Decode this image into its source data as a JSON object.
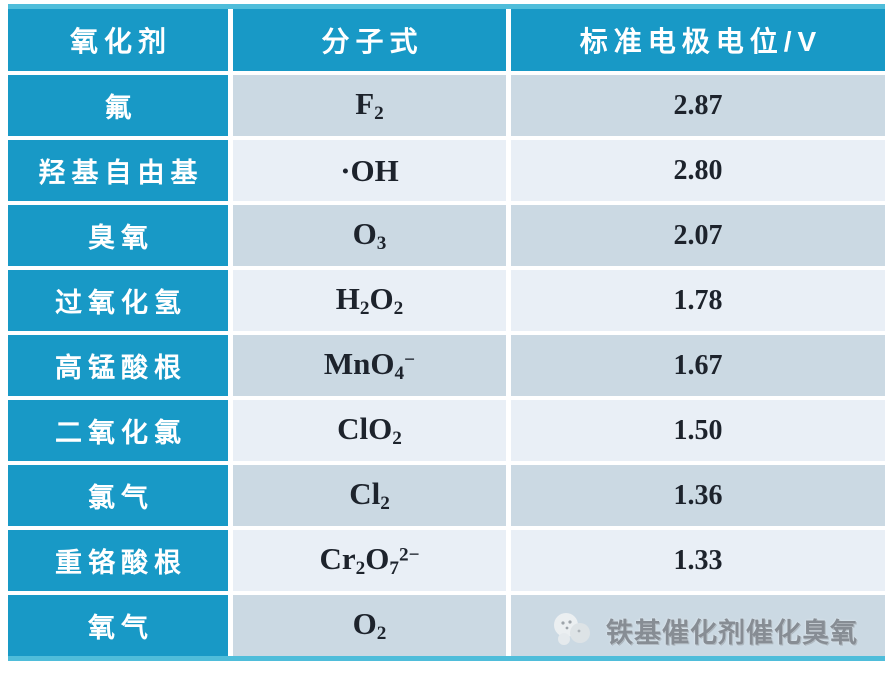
{
  "colors": {
    "table_blue": "#1899c6",
    "border_light": "#4fbdda",
    "row_dark": "#cbd9e3",
    "row_light": "#e9eff6",
    "ink": "#1d232c",
    "header_text": "#ffffff",
    "watermark_gray": "#878d94",
    "page_background": "#ffffff"
  },
  "table": {
    "columns": [
      {
        "key": "oxidant",
        "label": "氧化剂"
      },
      {
        "key": "formula",
        "label": "分子式"
      },
      {
        "key": "potential",
        "label": "标准电极电位/V"
      }
    ],
    "rows": [
      {
        "oxidant": "氟",
        "formula": [
          {
            "t": "F"
          },
          {
            "t": "2",
            "s": "sub"
          }
        ],
        "potential": "2.87"
      },
      {
        "oxidant": "羟基自由基",
        "formula": [
          {
            "t": "·OH"
          }
        ],
        "potential": "2.80"
      },
      {
        "oxidant": "臭氧",
        "formula": [
          {
            "t": "O"
          },
          {
            "t": "3",
            "s": "sub"
          }
        ],
        "potential": "2.07"
      },
      {
        "oxidant": "过氧化氢",
        "formula": [
          {
            "t": "H"
          },
          {
            "t": "2",
            "s": "sub"
          },
          {
            "t": "O"
          },
          {
            "t": "2",
            "s": "sub"
          }
        ],
        "potential": "1.78"
      },
      {
        "oxidant": "高锰酸根",
        "formula": [
          {
            "t": "MnO"
          },
          {
            "t": "4",
            "s": "sub"
          },
          {
            "t": "−",
            "s": "sup"
          }
        ],
        "potential": "1.67"
      },
      {
        "oxidant": "二氧化氯",
        "formula": [
          {
            "t": "ClO"
          },
          {
            "t": "2",
            "s": "sub"
          }
        ],
        "potential": "1.50"
      },
      {
        "oxidant": "氯气",
        "formula": [
          {
            "t": "Cl"
          },
          {
            "t": "2",
            "s": "sub"
          }
        ],
        "potential": "1.36"
      },
      {
        "oxidant": "重铬酸根",
        "formula": [
          {
            "t": "Cr"
          },
          {
            "t": "2",
            "s": "sub"
          },
          {
            "t": "O"
          },
          {
            "t": "7",
            "s": "sub"
          },
          {
            "t": "2−",
            "s": "sup"
          }
        ],
        "potential": "1.33"
      },
      {
        "oxidant": "氧气",
        "formula": [
          {
            "t": "O"
          },
          {
            "t": "2",
            "s": "sub"
          }
        ],
        "potential": ""
      }
    ]
  },
  "watermark": {
    "icon": "cloud-mascot-icon",
    "text": "铁基催化剂催化臭氧"
  },
  "chart_data": {
    "type": "table",
    "title": "",
    "columns": [
      "氧化剂",
      "分子式",
      "标准电极电位/V"
    ],
    "rows": [
      [
        "氟",
        "F2",
        2.87
      ],
      [
        "羟基自由基",
        "·OH",
        2.8
      ],
      [
        "臭氧",
        "O3",
        2.07
      ],
      [
        "过氧化氢",
        "H2O2",
        1.78
      ],
      [
        "高锰酸根",
        "MnO4−",
        1.67
      ],
      [
        "二氧化氯",
        "ClO2",
        1.5
      ],
      [
        "氯气",
        "Cl2",
        1.36
      ],
      [
        "重铬酸根",
        "Cr2O7 2−",
        1.33
      ],
      [
        "氧气",
        "O2",
        null
      ]
    ],
    "notes": "last potential value hidden behind watermark"
  }
}
